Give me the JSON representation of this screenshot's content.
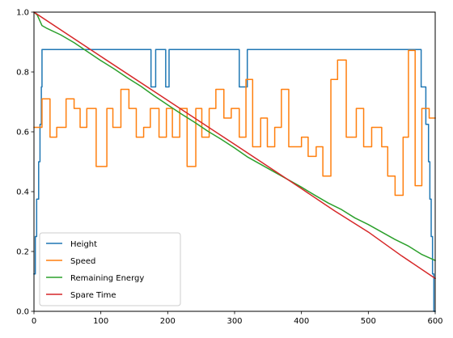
{
  "chart_data": {
    "type": "line",
    "title": "",
    "xlabel": "",
    "ylabel": "",
    "xlim": [
      0,
      600
    ],
    "ylim": [
      0,
      1
    ],
    "xticks": [
      0,
      100,
      200,
      300,
      400,
      500,
      600
    ],
    "yticks": [
      0.0,
      0.2,
      0.4,
      0.6,
      0.8,
      1.0
    ],
    "xtick_labels": [
      "0",
      "100",
      "200",
      "300",
      "400",
      "500",
      "600"
    ],
    "ytick_labels": [
      "0.0",
      "0.2",
      "0.4",
      "0.6",
      "0.8",
      "1.0"
    ],
    "grid": false,
    "legend_position": "lower-left",
    "series": [
      {
        "name": "Height",
        "color": "#1f77b4",
        "step": true,
        "points": [
          [
            0,
            0.125
          ],
          [
            2,
            0.125
          ],
          [
            2,
            0.25
          ],
          [
            4,
            0.25
          ],
          [
            4,
            0.375
          ],
          [
            7,
            0.375
          ],
          [
            7,
            0.5
          ],
          [
            9,
            0.5
          ],
          [
            9,
            0.625
          ],
          [
            11,
            0.625
          ],
          [
            11,
            0.75
          ],
          [
            12,
            0.75
          ],
          [
            12,
            0.875
          ],
          [
            175,
            0.875
          ],
          [
            175,
            0.75
          ],
          [
            182,
            0.75
          ],
          [
            182,
            0.875
          ],
          [
            197,
            0.875
          ],
          [
            197,
            0.75
          ],
          [
            202,
            0.75
          ],
          [
            202,
            0.875
          ],
          [
            307,
            0.875
          ],
          [
            307,
            0.75
          ],
          [
            319,
            0.75
          ],
          [
            319,
            0.875
          ],
          [
            579,
            0.875
          ],
          [
            579,
            0.75
          ],
          [
            586,
            0.75
          ],
          [
            586,
            0.625
          ],
          [
            590,
            0.625
          ],
          [
            590,
            0.5
          ],
          [
            592,
            0.5
          ],
          [
            592,
            0.375
          ],
          [
            594,
            0.375
          ],
          [
            594,
            0.25
          ],
          [
            596,
            0.25
          ],
          [
            596,
            0.125
          ],
          [
            598,
            0.125
          ],
          [
            598,
            0.0
          ],
          [
            600,
            0.0
          ]
        ]
      },
      {
        "name": "Speed",
        "color": "#ff7f0e",
        "step": true,
        "points": [
          [
            0,
            0.615
          ],
          [
            12,
            0.615
          ],
          [
            12,
            0.71
          ],
          [
            24,
            0.71
          ],
          [
            24,
            0.582
          ],
          [
            34,
            0.582
          ],
          [
            34,
            0.615
          ],
          [
            48,
            0.615
          ],
          [
            48,
            0.71
          ],
          [
            60,
            0.71
          ],
          [
            60,
            0.678
          ],
          [
            69,
            0.678
          ],
          [
            69,
            0.615
          ],
          [
            79,
            0.615
          ],
          [
            79,
            0.678
          ],
          [
            93,
            0.678
          ],
          [
            93,
            0.484
          ],
          [
            109,
            0.484
          ],
          [
            109,
            0.678
          ],
          [
            118,
            0.678
          ],
          [
            118,
            0.615
          ],
          [
            130,
            0.615
          ],
          [
            130,
            0.742
          ],
          [
            142,
            0.742
          ],
          [
            142,
            0.678
          ],
          [
            153,
            0.678
          ],
          [
            153,
            0.582
          ],
          [
            164,
            0.582
          ],
          [
            164,
            0.615
          ],
          [
            174,
            0.615
          ],
          [
            174,
            0.678
          ],
          [
            187,
            0.678
          ],
          [
            187,
            0.582
          ],
          [
            198,
            0.582
          ],
          [
            198,
            0.678
          ],
          [
            207,
            0.678
          ],
          [
            207,
            0.582
          ],
          [
            218,
            0.582
          ],
          [
            218,
            0.678
          ],
          [
            229,
            0.678
          ],
          [
            229,
            0.484
          ],
          [
            242,
            0.484
          ],
          [
            242,
            0.678
          ],
          [
            251,
            0.678
          ],
          [
            251,
            0.582
          ],
          [
            262,
            0.582
          ],
          [
            262,
            0.678
          ],
          [
            272,
            0.678
          ],
          [
            272,
            0.742
          ],
          [
            284,
            0.742
          ],
          [
            284,
            0.646
          ],
          [
            295,
            0.646
          ],
          [
            295,
            0.678
          ],
          [
            307,
            0.678
          ],
          [
            307,
            0.582
          ],
          [
            317,
            0.582
          ],
          [
            317,
            0.775
          ],
          [
            327,
            0.775
          ],
          [
            327,
            0.55
          ],
          [
            339,
            0.55
          ],
          [
            339,
            0.646
          ],
          [
            349,
            0.646
          ],
          [
            349,
            0.55
          ],
          [
            360,
            0.55
          ],
          [
            360,
            0.615
          ],
          [
            370,
            0.615
          ],
          [
            370,
            0.742
          ],
          [
            381,
            0.742
          ],
          [
            381,
            0.55
          ],
          [
            392,
            0.55
          ],
          [
            392,
            0.55
          ],
          [
            400,
            0.55
          ],
          [
            400,
            0.582
          ],
          [
            410,
            0.582
          ],
          [
            410,
            0.518
          ],
          [
            422,
            0.518
          ],
          [
            422,
            0.55
          ],
          [
            432,
            0.55
          ],
          [
            432,
            0.452
          ],
          [
            444,
            0.452
          ],
          [
            444,
            0.775
          ],
          [
            454,
            0.775
          ],
          [
            454,
            0.84
          ],
          [
            467,
            0.84
          ],
          [
            467,
            0.582
          ],
          [
            482,
            0.582
          ],
          [
            482,
            0.678
          ],
          [
            493,
            0.678
          ],
          [
            493,
            0.55
          ],
          [
            505,
            0.55
          ],
          [
            505,
            0.615
          ],
          [
            520,
            0.615
          ],
          [
            520,
            0.55
          ],
          [
            529,
            0.55
          ],
          [
            529,
            0.452
          ],
          [
            540,
            0.452
          ],
          [
            540,
            0.388
          ],
          [
            552,
            0.388
          ],
          [
            552,
            0.582
          ],
          [
            560,
            0.582
          ],
          [
            560,
            0.872
          ],
          [
            570,
            0.872
          ],
          [
            570,
            0.42
          ],
          [
            580,
            0.42
          ],
          [
            580,
            0.678
          ],
          [
            591,
            0.678
          ],
          [
            591,
            0.646
          ],
          [
            600,
            0.646
          ]
        ]
      },
      {
        "name": "Remaining Energy",
        "color": "#2ca02c",
        "step": false,
        "points": [
          [
            0,
            1.0
          ],
          [
            5,
            0.99
          ],
          [
            12,
            0.955
          ],
          [
            20,
            0.945
          ],
          [
            40,
            0.924
          ],
          [
            60,
            0.898
          ],
          [
            80,
            0.868
          ],
          [
            100,
            0.838
          ],
          [
            120,
            0.81
          ],
          [
            140,
            0.78
          ],
          [
            160,
            0.752
          ],
          [
            180,
            0.72
          ],
          [
            200,
            0.69
          ],
          [
            220,
            0.66
          ],
          [
            240,
            0.632
          ],
          [
            260,
            0.602
          ],
          [
            280,
            0.575
          ],
          [
            300,
            0.546
          ],
          [
            320,
            0.515
          ],
          [
            340,
            0.49
          ],
          [
            360,
            0.465
          ],
          [
            380,
            0.44
          ],
          [
            400,
            0.415
          ],
          [
            420,
            0.388
          ],
          [
            440,
            0.362
          ],
          [
            460,
            0.34
          ],
          [
            480,
            0.312
          ],
          [
            500,
            0.29
          ],
          [
            520,
            0.265
          ],
          [
            540,
            0.24
          ],
          [
            560,
            0.218
          ],
          [
            580,
            0.19
          ],
          [
            600,
            0.17
          ]
        ]
      },
      {
        "name": "Spare Time",
        "color": "#d62728",
        "step": false,
        "points": [
          [
            0,
            1.0
          ],
          [
            100,
            0.852
          ],
          [
            200,
            0.705
          ],
          [
            300,
            0.558
          ],
          [
            400,
            0.41
          ],
          [
            450,
            0.335
          ],
          [
            500,
            0.265
          ],
          [
            550,
            0.185
          ],
          [
            600,
            0.11
          ]
        ]
      }
    ]
  }
}
